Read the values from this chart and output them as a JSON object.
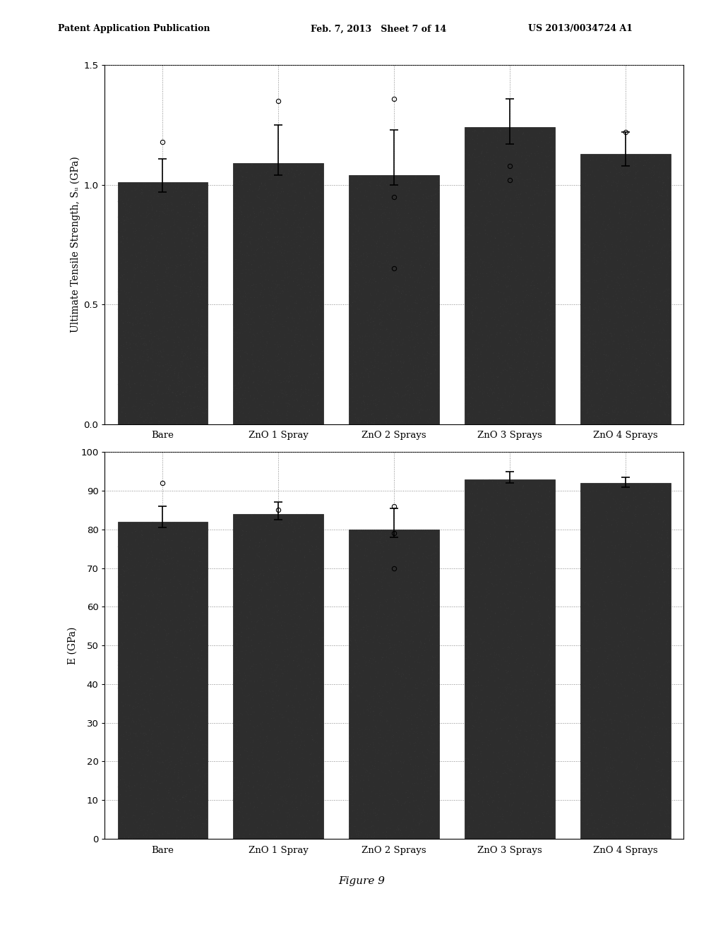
{
  "categories": [
    "Bare",
    "ZnO 1 Spray",
    "ZnO 2 Sprays",
    "ZnO 3 Sprays",
    "ZnO 4 Sprays"
  ],
  "chart1": {
    "ylabel": "Ultimate Tensile Strength, Sᵤ (GPa)",
    "ylim": [
      0,
      1.5
    ],
    "yticks": [
      0,
      0.5,
      1.0,
      1.5
    ],
    "bar_values": [
      1.01,
      1.09,
      1.04,
      1.24,
      1.13
    ],
    "err_low": [
      0.04,
      0.05,
      0.04,
      0.07,
      0.05
    ],
    "err_high": [
      0.1,
      0.16,
      0.19,
      0.12,
      0.09
    ],
    "outliers": [
      1.18,
      1.35,
      1.36,
      1.08,
      1.22
    ],
    "outliers2": [
      null,
      null,
      0.95,
      1.02,
      null
    ],
    "outliers3": [
      null,
      null,
      0.65,
      null,
      null
    ]
  },
  "chart2": {
    "ylabel": "E (GPa)",
    "ylim": [
      0,
      100
    ],
    "yticks": [
      0,
      10,
      20,
      30,
      40,
      50,
      60,
      70,
      80,
      90,
      100
    ],
    "bar_values": [
      82,
      84,
      80,
      93,
      92
    ],
    "err_low": [
      1.5,
      1.5,
      2.0,
      1.0,
      1.0
    ],
    "err_high": [
      4.0,
      3.0,
      5.5,
      2.0,
      1.5
    ],
    "outliers": [
      92,
      null,
      86,
      null,
      null
    ],
    "outliers2": [
      null,
      85,
      79,
      null,
      null
    ],
    "outliers3": [
      null,
      null,
      70,
      null,
      null
    ]
  },
  "bar_color": "#2d2d2d",
  "bar_edge_color": "#1a1a1a",
  "background_color": "#ffffff",
  "plot_bg_color": "#e8e8e8",
  "figure_caption": "Figure 9",
  "header_left": "Patent Application Publication",
  "header_mid": "Feb. 7, 2013   Sheet 7 of 14",
  "header_right": "US 2013/0034724 A1"
}
